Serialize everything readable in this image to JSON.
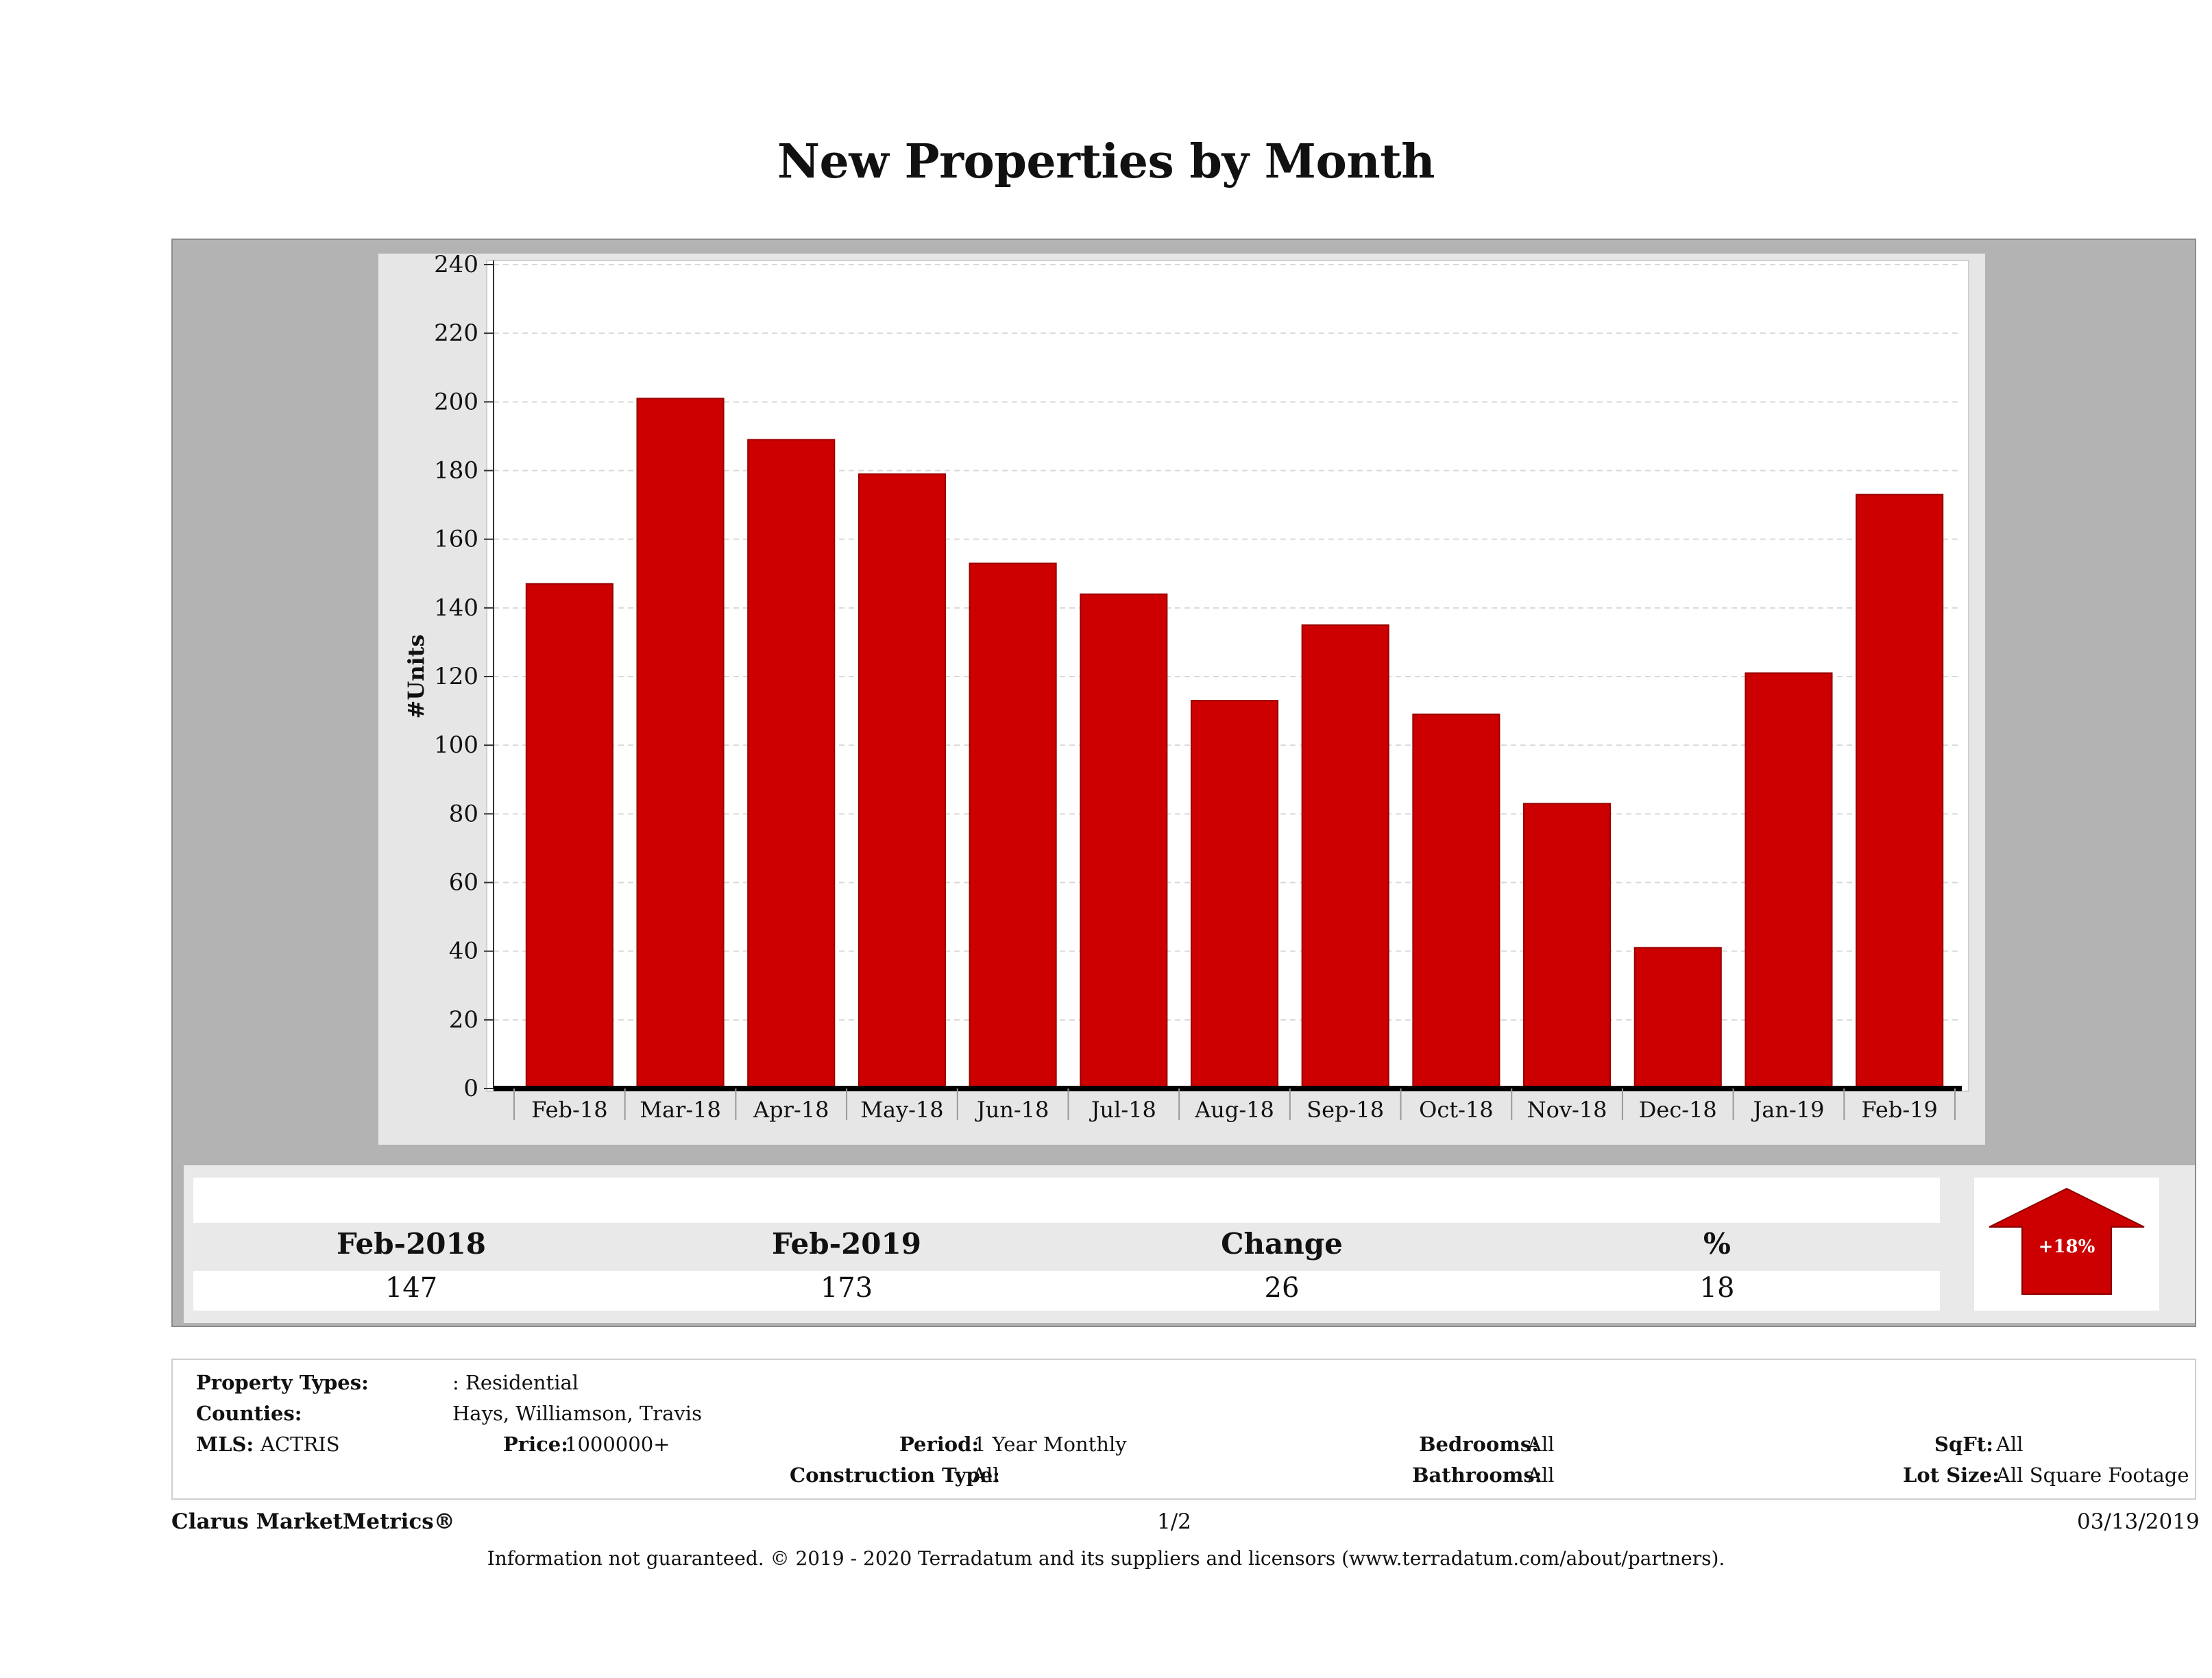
{
  "page_title": "New Properties by Month",
  "chart_data": {
    "type": "bar",
    "title": "New Properties by Month",
    "ylabel": "#Units",
    "xlabel": "",
    "categories": [
      "Feb-18",
      "Mar-18",
      "Apr-18",
      "May-18",
      "Jun-18",
      "Jul-18",
      "Aug-18",
      "Sep-18",
      "Oct-18",
      "Nov-18",
      "Dec-18",
      "Jan-19",
      "Feb-19"
    ],
    "values": [
      147,
      201,
      189,
      179,
      153,
      144,
      113,
      135,
      109,
      83,
      41,
      121,
      173
    ],
    "ylim": [
      0,
      240
    ],
    "yticks": [
      0,
      20,
      40,
      60,
      80,
      100,
      120,
      140,
      160,
      180,
      200,
      220,
      240
    ],
    "grid": true,
    "bar_color": "#cc0000"
  },
  "summary": {
    "col1_head": "Feb-2018",
    "col2_head": "Feb-2019",
    "col3_head": "Change",
    "col4_head": "%",
    "col1_val": "147",
    "col2_val": "173",
    "col3_val": "26",
    "col4_val": "18",
    "arrow_label": "+18%",
    "arrow_color": "#cc0000"
  },
  "filters": {
    "property_types_label": "Property Types:",
    "property_types_value": ": Residential",
    "counties_label": "Counties:",
    "counties_value": "Hays, Williamson, Travis",
    "mls_label": "MLS:",
    "mls_value": "ACTRIS",
    "price_label": "Price:",
    "price_value": "1000000+",
    "period_label": "Period:",
    "period_value": "1 Year Monthly",
    "construction_label": "Construction Type:",
    "construction_value": "All",
    "bedrooms_label": "Bedrooms:",
    "bedrooms_value": "All",
    "bathrooms_label": "Bathrooms:",
    "bathrooms_value": "All",
    "sqft_label": "SqFt:",
    "sqft_value": "All",
    "lotsize_label": "Lot Size:",
    "lotsize_value": "All Square Footage"
  },
  "footer": {
    "brand": "Clarus MarketMetrics®",
    "page": "1/2",
    "date": "03/13/2019",
    "disclaimer": "Information not guaranteed. © 2019 - 2020 Terradatum and its suppliers and licensors (www.terradatum.com/about/partners)."
  }
}
